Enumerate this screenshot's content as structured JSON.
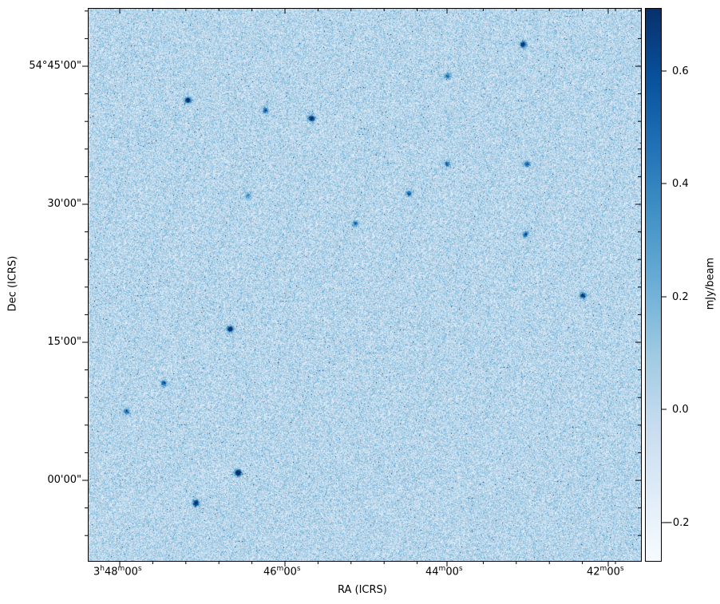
{
  "chart_data": {
    "type": "heatmap",
    "xlabel": "RA (ICRS)",
    "ylabel": "Dec (ICRS)",
    "x_ticks": [
      {
        "h": "3",
        "m": "48",
        "s": "00",
        "label": "3h48m00s"
      },
      {
        "m": "46",
        "s": "00",
        "label": "46m00s"
      },
      {
        "m": "44",
        "s": "00",
        "label": "44m00s"
      },
      {
        "m": "42",
        "s": "00",
        "label": "42m00s"
      }
    ],
    "y_ticks": [
      "54°45'00\"",
      "30'00\"",
      "15'00\"",
      "00'00\""
    ],
    "colorbar": {
      "label": "mJy/beam",
      "colormap": "Blues",
      "ticks": [
        "0.6",
        "0.4",
        "0.2",
        "0.0",
        "−0.2"
      ],
      "range": [
        -0.266,
        0.712
      ]
    }
  }
}
